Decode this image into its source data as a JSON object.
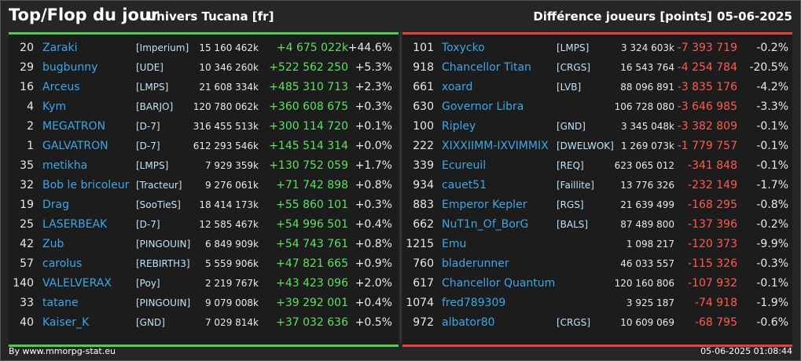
{
  "header": {
    "title": "Top/Flop du jour",
    "universe": "Univers Tucana [fr]",
    "metric": "Différence joueurs [points]",
    "date": "05-06-2025"
  },
  "top": [
    {
      "rank": "20",
      "name": "Zaraki",
      "ally": "[Imperium]",
      "points": "15 160 462k",
      "diff": "+4 675 022k",
      "pct": "+44.6%"
    },
    {
      "rank": "29",
      "name": "bugbunny",
      "ally": "[UDE]",
      "points": "10 346 260k",
      "diff": "+522 562 250",
      "pct": "+5.3%"
    },
    {
      "rank": "16",
      "name": "Arceus",
      "ally": "[LMPS]",
      "points": "21 608 334k",
      "diff": "+485 310 713",
      "pct": "+2.3%"
    },
    {
      "rank": "4",
      "name": "Kym",
      "ally": "[BARJO]",
      "points": "120 780 062k",
      "diff": "+360 608 675",
      "pct": "+0.3%"
    },
    {
      "rank": "2",
      "name": "MEGATRON",
      "ally": "[D-7]",
      "points": "316 455 513k",
      "diff": "+300 114 720",
      "pct": "+0.1%"
    },
    {
      "rank": "1",
      "name": "GALVATRON",
      "ally": "[D-7]",
      "points": "612 293 546k",
      "diff": "+145 514 314",
      "pct": "+0.0%"
    },
    {
      "rank": "35",
      "name": "metikha",
      "ally": "[LMPS]",
      "points": "7 929 359k",
      "diff": "+130 752 059",
      "pct": "+1.7%"
    },
    {
      "rank": "32",
      "name": "Bob le bricoleur",
      "ally": "[Tracteur]",
      "points": "9 276 061k",
      "diff": "+71 742 898",
      "pct": "+0.8%"
    },
    {
      "rank": "19",
      "name": "Drag",
      "ally": "[SooTieS]",
      "points": "18 414 173k",
      "diff": "+55 860 101",
      "pct": "+0.3%"
    },
    {
      "rank": "25",
      "name": "LASERBEAK",
      "ally": "[D-7]",
      "points": "12 585 467k",
      "diff": "+54 996 501",
      "pct": "+0.4%"
    },
    {
      "rank": "42",
      "name": "Zub",
      "ally": "[PINGOUIN]",
      "points": "6 849 909k",
      "diff": "+54 743 761",
      "pct": "+0.8%"
    },
    {
      "rank": "57",
      "name": "carolus",
      "ally": "[REBIRTH3]",
      "points": "5 559 906k",
      "diff": "+47 821 665",
      "pct": "+0.9%"
    },
    {
      "rank": "140",
      "name": "VALELVERAX",
      "ally": "[Poy]",
      "points": "2 219 767k",
      "diff": "+43 423 096",
      "pct": "+2.0%"
    },
    {
      "rank": "33",
      "name": "tatane",
      "ally": "[PINGOUIN]",
      "points": "9 079 008k",
      "diff": "+39 292 001",
      "pct": "+0.4%"
    },
    {
      "rank": "40",
      "name": "Kaiser_K",
      "ally": "[GND]",
      "points": "7 029 814k",
      "diff": "+37 032 636",
      "pct": "+0.5%"
    }
  ],
  "flop": [
    {
      "rank": "101",
      "name": "Toxycko",
      "ally": "[LMPS]",
      "points": "3 324 603k",
      "diff": "-7 393 719",
      "pct": "-0.2%"
    },
    {
      "rank": "918",
      "name": "Chancellor Titan",
      "ally": "[CRGS]",
      "points": "16 543 764",
      "diff": "-4 254 784",
      "pct": "-20.5%"
    },
    {
      "rank": "661",
      "name": "xoard",
      "ally": "[LVB]",
      "points": "88 096 891",
      "diff": "-3 835 176",
      "pct": "-4.2%"
    },
    {
      "rank": "630",
      "name": "Governor Libra",
      "ally": "",
      "points": "106 728 080",
      "diff": "-3 646 985",
      "pct": "-3.3%"
    },
    {
      "rank": "100",
      "name": "Ripley",
      "ally": "[GND]",
      "points": "3 345 048k",
      "diff": "-3 382 809",
      "pct": "-0.1%"
    },
    {
      "rank": "222",
      "name": "XIXXIIMM-IXVIMMIX",
      "ally": "[DWELWOK]",
      "points": "1 269 073k",
      "diff": "-1 779 757",
      "pct": "-0.1%"
    },
    {
      "rank": "339",
      "name": "Ecureuil",
      "ally": "[REQ]",
      "points": "623 065 012",
      "diff": "-341 848",
      "pct": "-0.1%"
    },
    {
      "rank": "934",
      "name": "cauet51",
      "ally": "[Faillite]",
      "points": "13 776 326",
      "diff": "-232 149",
      "pct": "-1.7%"
    },
    {
      "rank": "883",
      "name": "Emperor Kepler",
      "ally": "[RGS]",
      "points": "21 639 499",
      "diff": "-168 295",
      "pct": "-0.8%"
    },
    {
      "rank": "662",
      "name": "NuT1n_Of_BorG",
      "ally": "[BALS]",
      "points": "87 489 800",
      "diff": "-137 396",
      "pct": "-0.2%"
    },
    {
      "rank": "1215",
      "name": "Emu",
      "ally": "",
      "points": "1 098 217",
      "diff": "-120 373",
      "pct": "-9.9%"
    },
    {
      "rank": "760",
      "name": "bladerunner",
      "ally": "",
      "points": "46 033 557",
      "diff": "-115 326",
      "pct": "-0.3%"
    },
    {
      "rank": "617",
      "name": "Chancellor Quantum",
      "ally": "",
      "points": "120 160 806",
      "diff": "-107 932",
      "pct": "-0.1%"
    },
    {
      "rank": "1074",
      "name": "fred789309",
      "ally": "",
      "points": "3 925 187",
      "diff": "-74 918",
      "pct": "-1.9%"
    },
    {
      "rank": "972",
      "name": "albator80",
      "ally": "[CRGS]",
      "points": "10 609 069",
      "diff": "-68 795",
      "pct": "-0.6%"
    }
  ],
  "footer": {
    "source": "By www.mmorpg-stat.eu",
    "timestamp": "05-06-2025 01:08:44"
  },
  "colors": {
    "top_accent": "#4ed04e",
    "flop_accent": "#e0443c",
    "name": "#3ea6e6"
  }
}
